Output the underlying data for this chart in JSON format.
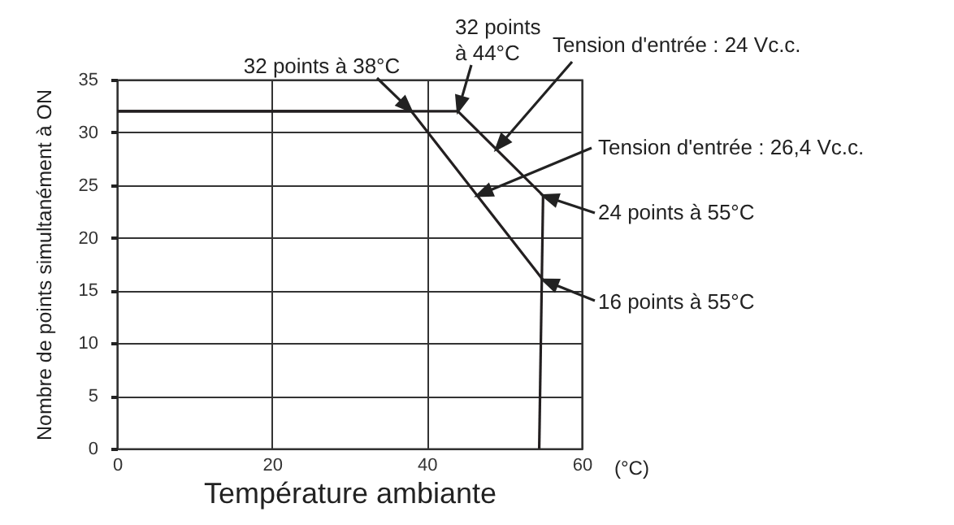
{
  "chart_data": {
    "type": "line",
    "xlabel": "Température ambiante",
    "ylabel": "Nombre de points simultanément à ON",
    "xlim": [
      0,
      60
    ],
    "ylim": [
      0,
      35
    ],
    "xticks": [
      0,
      20,
      40,
      60
    ],
    "yticks": [
      0,
      5,
      10,
      15,
      20,
      25,
      30,
      35
    ],
    "grid": true,
    "series": [
      {
        "name": "Tension d'entrée : 24 Vc.c.",
        "color": "#231f20",
        "x": [
          0,
          44,
          55
        ],
        "values": [
          32,
          32,
          24
        ]
      },
      {
        "name": "Tension d'entrée : 26,4 Vc.c.",
        "color": "#231f20",
        "x": [
          0,
          38,
          55
        ],
        "values": [
          32,
          32,
          16
        ]
      },
      {
        "color": "#231f20",
        "x": [
          54.5,
          55
        ],
        "values": [
          0,
          24
        ]
      }
    ],
    "annotations": [
      {
        "text": "32 points à 38°C",
        "x": 38,
        "y": 32
      },
      {
        "text": "32 points\nà 44°C",
        "x": 44,
        "y": 32
      },
      {
        "text": "24 points à 55°C",
        "x": 55,
        "y": 24
      },
      {
        "text": "16 points à 55°C",
        "x": 55,
        "y": 16
      },
      "(°C)"
    ]
  }
}
